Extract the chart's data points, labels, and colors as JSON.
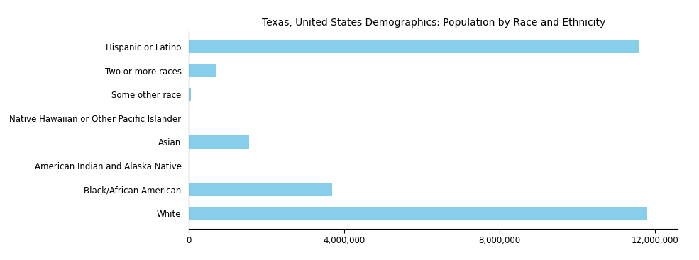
{
  "title": "Texas, United States Demographics: Population by Race and Ethnicity",
  "categories": [
    "White",
    "Black/African American",
    "American Indian and Alaska Native",
    "Asian",
    "Native Hawaiian or Other Pacific Islander",
    "Some other race",
    "Two or more races",
    "Hispanic or Latino"
  ],
  "values": [
    11800000,
    3700000,
    20000,
    1550000,
    15000,
    55000,
    720000,
    11600000
  ],
  "bar_color": "#87CEEB",
  "xlim": [
    0,
    12600000
  ],
  "xticks": [
    0,
    4000000,
    8000000,
    12000000
  ],
  "xtick_labels": [
    "0",
    "4,000,000",
    "8,000,000",
    "12,000,000"
  ],
  "background_color": "#ffffff",
  "title_fontsize": 10,
  "label_fontsize": 8.5,
  "tick_fontsize": 8.5
}
